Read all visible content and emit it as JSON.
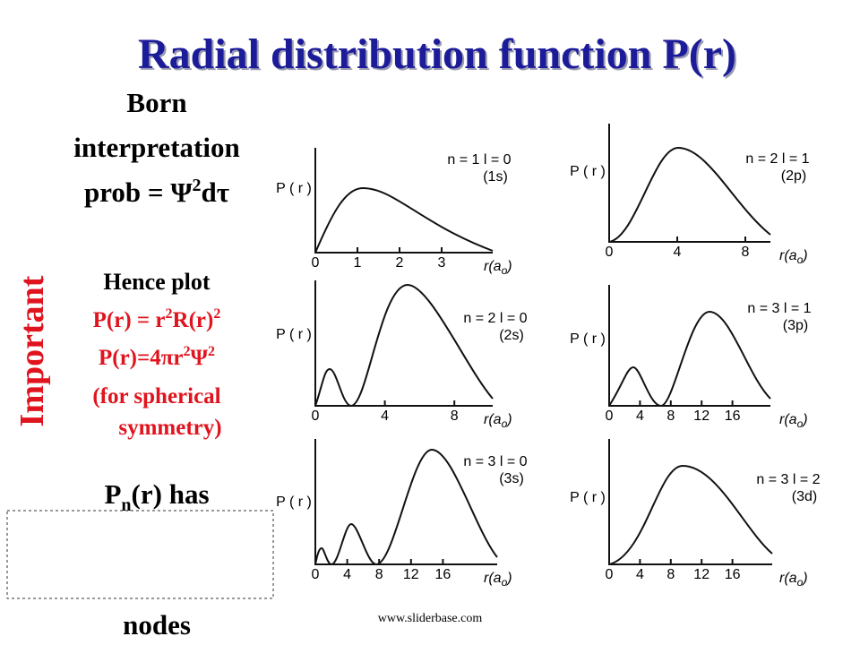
{
  "title": "Radial distribution function P(r)",
  "left_panel": {
    "born": "Born",
    "interpretation": "interpretation",
    "prob": [
      "prob = Ψ",
      "2",
      "dτ"
    ],
    "hence": "Hence plot",
    "formula1": [
      "P(r) = r",
      "2",
      "R(r)",
      "2"
    ],
    "formula2": [
      "P(r)=4πr",
      "2",
      "Ψ",
      "2"
    ],
    "note1": "(for spherical",
    "note2": "symmetry)",
    "pn": [
      "P",
      "n",
      "(r) has"
    ],
    "nodes": "nodes",
    "side": "Important"
  },
  "y_label": "P ( r )",
  "x_label": [
    "r(a",
    "o",
    ")"
  ],
  "plots": [
    {
      "legend": "n = 1   l = 0",
      "orbital": "(1s)",
      "ticks": [
        0,
        1,
        2,
        3
      ]
    },
    {
      "legend": "n = 2   l = 1",
      "orbital": "(2p)",
      "ticks": [
        0,
        4,
        8
      ]
    },
    {
      "legend": "n = 2   l = 0",
      "orbital": "(2s)",
      "ticks": [
        0,
        4,
        8
      ]
    },
    {
      "legend": "n = 3   l = 1",
      "orbital": "(3p)",
      "ticks": [
        0,
        4,
        8,
        12,
        16
      ]
    },
    {
      "legend": "n = 3   l = 0",
      "orbital": "(3s)",
      "ticks": [
        0,
        4,
        8,
        12,
        16
      ]
    },
    {
      "legend": "n = 3   l = 2",
      "orbital": "(3d)",
      "ticks": [
        0,
        4,
        8,
        12,
        16
      ]
    }
  ],
  "footer": "www.sliderbase.com"
}
